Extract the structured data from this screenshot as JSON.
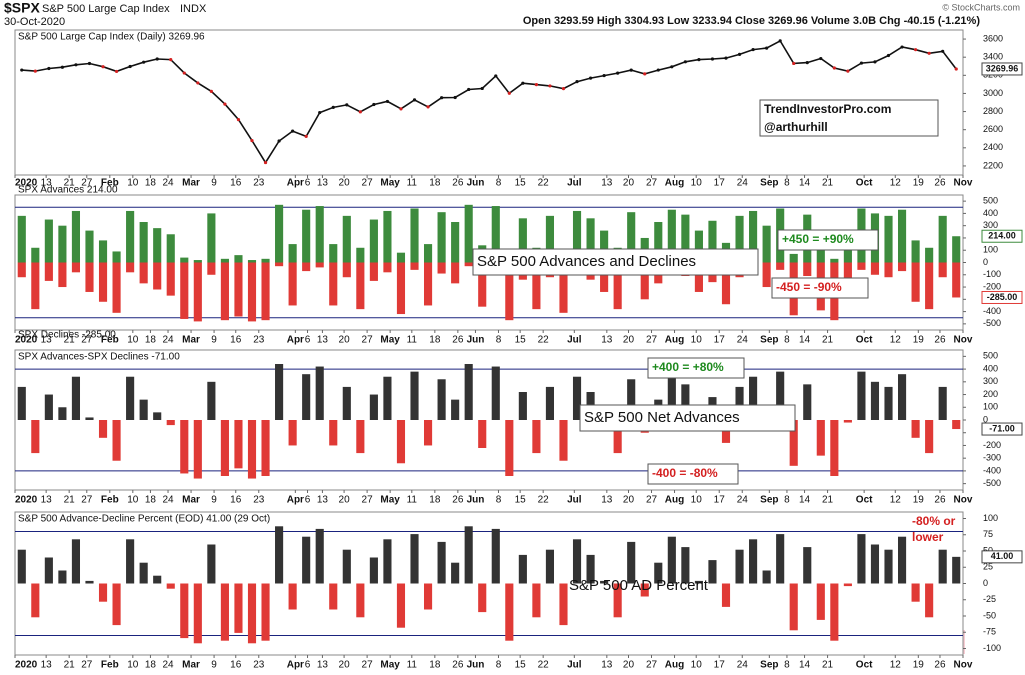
{
  "header": {
    "symbol": "$SPX",
    "name": "S&P 500 Large Cap Index",
    "exchange": "INDX",
    "date": "30-Oct-2020",
    "quote": "Open 3293.59 High 3304.93 Low 3233.94 Close 3269.96 Volume 3.0B Chg -40.15 (-1.21%)",
    "watermark": "© StockCharts.com"
  },
  "chart_data": [
    {
      "type": "line",
      "title": "S&P 500 Large Cap Index (Daily) 3269.96",
      "color": "#111111",
      "last_label": "3269.96",
      "values": [
        3258,
        3246,
        3275,
        3289,
        3316,
        3330,
        3295,
        3243,
        3297,
        3345,
        3380,
        3373,
        3225,
        3116,
        3023,
        2882,
        2711,
        2480,
        2237,
        2475,
        2584,
        2526,
        2789,
        2846,
        2874,
        2797,
        2878,
        2912,
        2830,
        2929,
        2852,
        2953,
        2955,
        3044,
        3055,
        3193,
        3002,
        3113,
        3097,
        3083,
        3053,
        3130,
        3169,
        3197,
        3224,
        3257,
        3216,
        3258,
        3294,
        3349,
        3373,
        3380,
        3390,
        3431,
        3484,
        3500,
        3580,
        3331,
        3340,
        3385,
        3281,
        3246,
        3335,
        3348,
        3419,
        3512,
        3483,
        3443,
        3465,
        3270
      ],
      "ylim": [
        2100,
        3700
      ],
      "yticks": [
        2200,
        2400,
        2600,
        2800,
        3000,
        3200,
        3400,
        3600
      ],
      "xlim": [
        0,
        70
      ],
      "xticks": [
        {
          "value": 0,
          "label": "2020"
        },
        {
          "value": 2.3,
          "label": "13"
        },
        {
          "value": 4,
          "label": "21"
        },
        {
          "value": 5.3,
          "label": "27"
        },
        {
          "value": 7,
          "label": "Feb"
        },
        {
          "value": 8.7,
          "label": "10"
        },
        {
          "value": 10,
          "label": "18"
        },
        {
          "value": 11.3,
          "label": "24"
        },
        {
          "value": 13,
          "label": "Mar"
        },
        {
          "value": 14.7,
          "label": "9"
        },
        {
          "value": 16.3,
          "label": "16"
        },
        {
          "value": 18,
          "label": "23"
        },
        {
          "value": 20.7,
          "label": "Apr"
        },
        {
          "value": 21.6,
          "label": "6"
        },
        {
          "value": 22.7,
          "label": "13"
        },
        {
          "value": 24.3,
          "label": "20"
        },
        {
          "value": 26,
          "label": "27"
        },
        {
          "value": 27.7,
          "label": "May"
        },
        {
          "value": 29.3,
          "label": "11"
        },
        {
          "value": 31,
          "label": "18"
        },
        {
          "value": 32.7,
          "label": "26"
        },
        {
          "value": 34,
          "label": "Jun"
        },
        {
          "value": 35.7,
          "label": "8"
        },
        {
          "value": 37.3,
          "label": "15"
        },
        {
          "value": 39,
          "label": "22"
        },
        {
          "value": 41.3,
          "label": "Jul"
        },
        {
          "value": 43.7,
          "label": "13"
        },
        {
          "value": 45.3,
          "label": "20"
        },
        {
          "value": 47,
          "label": "27"
        },
        {
          "value": 48.7,
          "label": "Aug"
        },
        {
          "value": 50.3,
          "label": "10"
        },
        {
          "value": 52,
          "label": "17"
        },
        {
          "value": 53.7,
          "label": "24"
        },
        {
          "value": 55.7,
          "label": "Sep"
        },
        {
          "value": 57,
          "label": "8"
        },
        {
          "value": 58.3,
          "label": "14"
        },
        {
          "value": 60,
          "label": "21"
        },
        {
          "value": 62.7,
          "label": "Oct"
        },
        {
          "value": 65,
          "label": "12"
        },
        {
          "value": 66.7,
          "label": "19"
        },
        {
          "value": 68.3,
          "label": "26"
        },
        {
          "value": 70,
          "label": "Nov"
        }
      ],
      "annotations": [
        {
          "text": "TrendInvestorPro.com",
          "color": "#111111"
        },
        {
          "text": "@arthurhill",
          "color": "#111111"
        }
      ]
    },
    {
      "type": "bar",
      "series": [
        {
          "name": "SPX Advances 214.00",
          "color": "#3d8b3d",
          "last_label": "214.00",
          "values": [
            380,
            120,
            350,
            300,
            420,
            260,
            180,
            90,
            420,
            330,
            280,
            230,
            40,
            20,
            400,
            30,
            60,
            20,
            30,
            470,
            150,
            430,
            460,
            150,
            380,
            120,
            350,
            420,
            80,
            440,
            150,
            410,
            330,
            470,
            140,
            460,
            30,
            360,
            120,
            380,
            90,
            420,
            360,
            260,
            120,
            410,
            200,
            330,
            430,
            390,
            260,
            340,
            160,
            380,
            420,
            300,
            440,
            70,
            390,
            110,
            30,
            240,
            440,
            400,
            380,
            430,
            180,
            120,
            380,
            214
          ]
        },
        {
          "name": "SPX Declines -285.00",
          "color": "#e03a36",
          "last_label": "-285.00",
          "values": [
            -120,
            -380,
            -150,
            -200,
            -80,
            -240,
            -320,
            -410,
            -80,
            -170,
            -220,
            -270,
            -460,
            -480,
            -100,
            -470,
            -440,
            -480,
            -470,
            -30,
            -350,
            -70,
            -40,
            -350,
            -120,
            -380,
            -150,
            -80,
            -420,
            -60,
            -350,
            -90,
            -170,
            -30,
            -360,
            -40,
            -470,
            -140,
            -380,
            -120,
            -410,
            -80,
            -140,
            -240,
            -380,
            -90,
            -300,
            -170,
            -70,
            -110,
            -240,
            -160,
            -340,
            -120,
            -80,
            -200,
            -60,
            -430,
            -110,
            -390,
            -470,
            -260,
            -60,
            -100,
            -120,
            -70,
            -320,
            -380,
            -120,
            -285
          ]
        }
      ],
      "ylim": [
        -550,
        550
      ],
      "yticks": [
        -500,
        -400,
        -300,
        -200,
        -100,
        0,
        100,
        200,
        300,
        400,
        500
      ],
      "ref_lines": [
        450,
        -450
      ],
      "annotations": [
        {
          "text": "+450 = +90%",
          "color": "#1e8a1e"
        },
        {
          "text": "-450 = -90%",
          "color": "#d42020"
        },
        {
          "text": "S&P 500 Advances and Declines",
          "color": "#111111"
        }
      ]
    },
    {
      "type": "bar",
      "title": "SPX Advances-SPX Declines -71.00",
      "color": "#333333",
      "negative_color": "#e03a36",
      "last_label": "-71.00",
      "values": [
        260,
        -260,
        200,
        100,
        340,
        20,
        -140,
        -320,
        340,
        160,
        60,
        -40,
        -420,
        -460,
        300,
        -440,
        -380,
        -460,
        -440,
        440,
        -200,
        360,
        420,
        -200,
        260,
        -260,
        200,
        340,
        -340,
        380,
        -200,
        320,
        160,
        440,
        -220,
        420,
        -440,
        220,
        -260,
        260,
        -320,
        340,
        220,
        20,
        -260,
        320,
        -100,
        160,
        360,
        280,
        20,
        180,
        -180,
        260,
        340,
        100,
        380,
        -360,
        280,
        -280,
        -440,
        -20,
        380,
        300,
        260,
        360,
        -140,
        -260,
        260,
        -71
      ],
      "ylim": [
        -550,
        550
      ],
      "yticks": [
        -500,
        -400,
        -300,
        -200,
        -100,
        0,
        100,
        200,
        300,
        400,
        500
      ],
      "ref_lines": [
        400,
        -400
      ],
      "annotations": [
        {
          "text": "+400 = +80%",
          "color": "#1e8a1e"
        },
        {
          "text": "-400 = -80%",
          "color": "#d42020"
        },
        {
          "text": "S&P 500 Net Advances",
          "color": "#111111"
        }
      ]
    },
    {
      "type": "bar",
      "title": "S&P 500 Advance-Decline Percent (EOD) 41.00 (29 Oct)",
      "color": "#333333",
      "negative_color": "#e03a36",
      "last_label": "41.00",
      "values": [
        52,
        -52,
        40,
        20,
        68,
        4,
        -28,
        -64,
        68,
        32,
        12,
        -8,
        -84,
        -92,
        60,
        -88,
        -76,
        -92,
        -88,
        88,
        -40,
        72,
        84,
        -40,
        52,
        -52,
        40,
        68,
        -68,
        76,
        -40,
        64,
        32,
        88,
        -44,
        84,
        -88,
        44,
        -52,
        52,
        -64,
        68,
        44,
        4,
        -52,
        64,
        -20,
        32,
        72,
        56,
        4,
        36,
        -36,
        52,
        68,
        20,
        76,
        -72,
        56,
        -56,
        -88,
        -4,
        76,
        60,
        52,
        72,
        -28,
        -52,
        52,
        41
      ],
      "ylim": [
        -110,
        110
      ],
      "yticks": [
        -100,
        -75,
        -50,
        -25,
        0,
        25,
        50,
        75,
        100
      ],
      "ref_lines": [
        80,
        -80
      ],
      "annotations": [
        {
          "text": "-80% or",
          "color": "#d42020"
        },
        {
          "text": "lower",
          "color": "#d42020"
        },
        {
          "text": "S&P 500 AD Percent",
          "color": "#111111"
        }
      ]
    }
  ]
}
